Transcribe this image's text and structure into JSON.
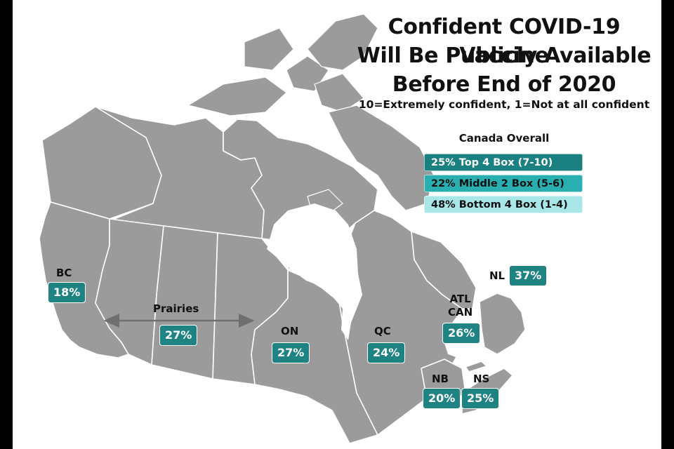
{
  "title_lines": [
    "Confident COVID-19 Vaccine",
    "Will Be Publicly Available",
    "Before End of 2020"
  ],
  "subtitle": "10=Extremely confident, 1=Not at all confident",
  "legend": {
    "title": "Canada Overall",
    "items": [
      {
        "label": "25% Top 4 Box (7-10)",
        "color": "#1a8080",
        "text_color": "#ffffff"
      },
      {
        "label": "22% Middle 2 Box (5-6)",
        "color": "#2aafb1",
        "text_color": "#111111"
      },
      {
        "label": "48% Bottom 4 Box (1-4)",
        "color": "#a8e6e8",
        "text_color": "#111111"
      }
    ]
  },
  "regions": {
    "bc": {
      "name": "BC",
      "value": "18%"
    },
    "prairies": {
      "name": "Prairies",
      "value": "27%"
    },
    "on": {
      "name": "ON",
      "value": "27%"
    },
    "qc": {
      "name": "QC",
      "value": "24%"
    },
    "atl": {
      "name": "ATL\nCAN",
      "value": "26%"
    },
    "nl": {
      "name": "NL",
      "value": "37%"
    },
    "nb": {
      "name": "NB",
      "value": "20%"
    },
    "ns": {
      "name": "NS",
      "value": "25%"
    }
  },
  "colors": {
    "land": "#9b9b9b",
    "badge": "#1f8383",
    "frame": "#000000",
    "arrow": "#6f6f6f"
  }
}
